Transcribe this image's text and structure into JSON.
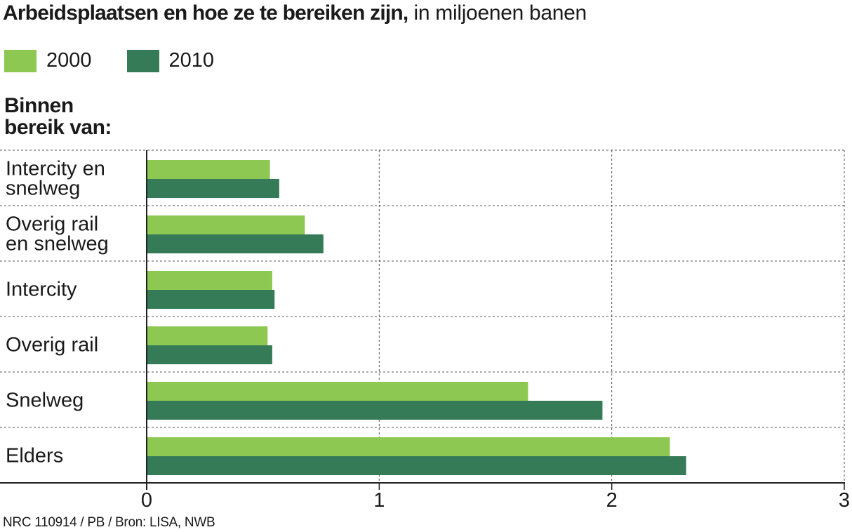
{
  "title": {
    "bold": "Arbeidsplaatsen en hoe ze te bereiken zijn,",
    "light": " in miljoenen banen"
  },
  "legend": [
    {
      "label": "2000",
      "color": "#8dc853"
    },
    {
      "label": "2010",
      "color": "#367b57"
    }
  ],
  "group_heading": [
    "Binnen",
    "bereik van:"
  ],
  "credit": "NRC 110914 / PB /  Bron: LISA, NWB",
  "chart_data": {
    "type": "bar",
    "orientation": "horizontal",
    "categories": [
      [
        "Intercity en",
        "snelweg"
      ],
      [
        "Overig rail",
        "en snelweg"
      ],
      [
        "Intercity"
      ],
      [
        "Overig rail"
      ],
      [
        "Snelweg"
      ],
      [
        "Elders"
      ]
    ],
    "series": [
      {
        "name": "2000",
        "color": "#8dc853",
        "values": [
          0.53,
          0.68,
          0.54,
          0.52,
          1.64,
          2.25
        ]
      },
      {
        "name": "2010",
        "color": "#367b57",
        "values": [
          0.57,
          0.76,
          0.55,
          0.54,
          1.96,
          2.32
        ]
      }
    ],
    "xlim": [
      0,
      3
    ],
    "xticks": [
      "0",
      "1",
      "2",
      "3"
    ],
    "grid": "dashed"
  }
}
